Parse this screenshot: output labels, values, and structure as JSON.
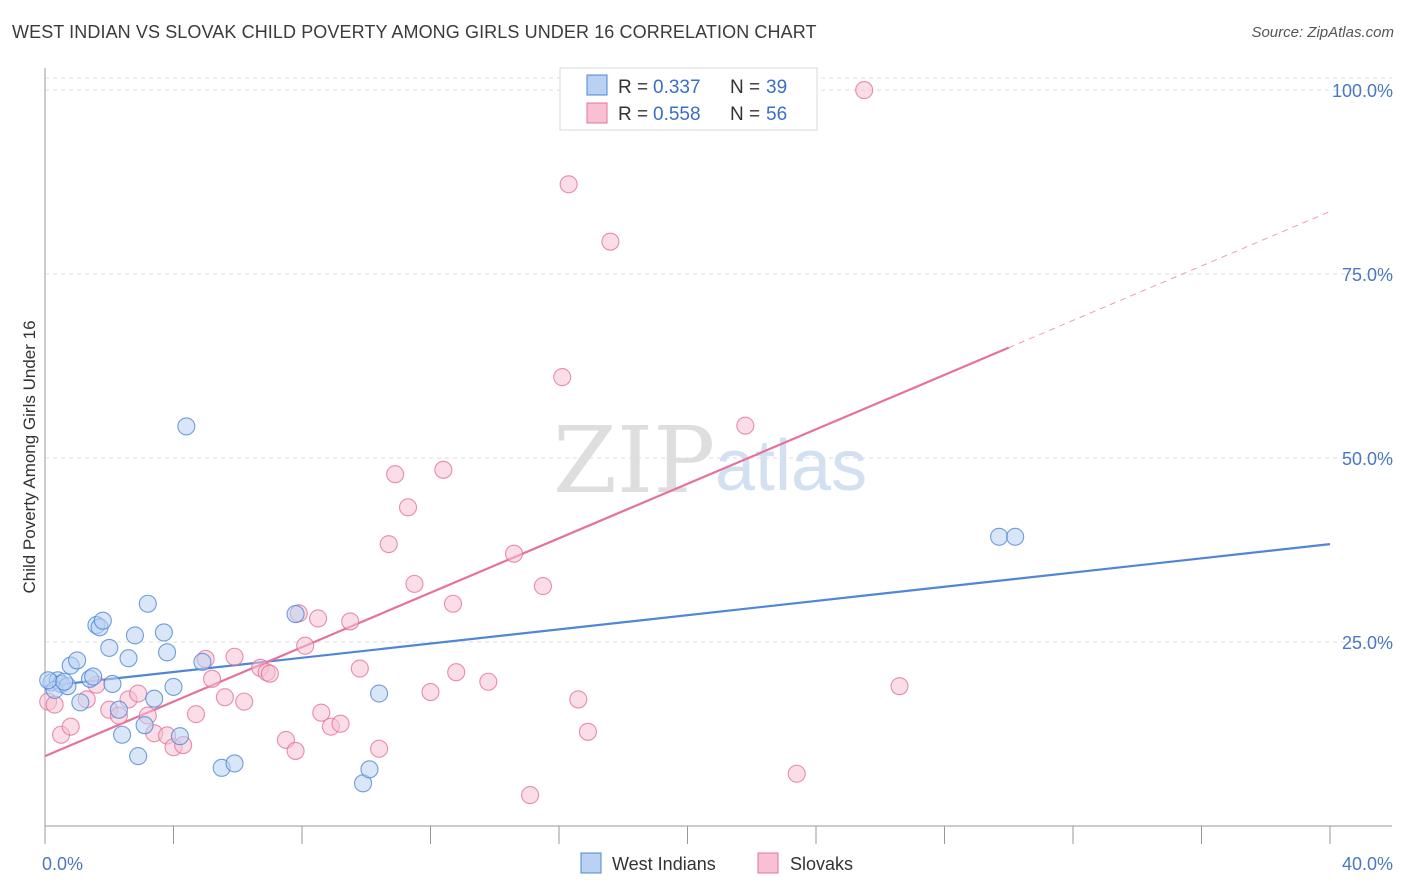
{
  "title": "WEST INDIAN VS SLOVAK CHILD POVERTY AMONG GIRLS UNDER 16 CORRELATION CHART",
  "source": "Source: ZipAtlas.com",
  "watermark": {
    "zip": "ZIP",
    "atlas": "atlas"
  },
  "colors": {
    "west_indians": "#4f86d6",
    "west_indians_fill": "#b9d1f2",
    "slovaks": "#e5729a",
    "slovaks_fill": "#f7c1d3",
    "tick_label": "#4a78c2"
  },
  "legend": {
    "entries": [
      {
        "r_label": "R =",
        "r_value": "0.337",
        "n_label": "N =",
        "n_value": "39"
      },
      {
        "r_label": "R =",
        "r_value": "0.558",
        "n_label": "N =",
        "n_value": "56"
      }
    ]
  },
  "chart_data": {
    "type": "scatter",
    "title": "WEST INDIAN VS SLOVAK CHILD POVERTY AMONG GIRLS UNDER 16 CORRELATION CHART",
    "xlabel": "",
    "ylabel": "Child Poverty Among Girls Under 16",
    "xlim": [
      0,
      40
    ],
    "ylim": [
      0,
      103
    ],
    "x_tick_labels": [
      {
        "value": 0,
        "label": "0.0%"
      },
      {
        "value": 40,
        "label": "40.0%"
      }
    ],
    "y_tick_labels": [
      {
        "value": 25,
        "label": "25.0%"
      },
      {
        "value": 50,
        "label": "50.0%"
      },
      {
        "value": 75,
        "label": "75.0%"
      },
      {
        "value": 100,
        "label": "100.0%"
      }
    ],
    "grid": true,
    "legend_position": "top-center",
    "series": [
      {
        "name": "West Indians",
        "r": 0.337,
        "n": 39,
        "trend": {
          "x0": 0,
          "y0": 19.0,
          "x1": 40,
          "y1": 38.3
        },
        "points": [
          [
            0.2,
            19.5
          ],
          [
            0.4,
            19.8
          ],
          [
            0.5,
            19.3
          ],
          [
            0.3,
            18.5
          ],
          [
            0.7,
            19.0
          ],
          [
            0.8,
            21.8
          ],
          [
            1.0,
            22.5
          ],
          [
            1.1,
            16.8
          ],
          [
            1.4,
            20.0
          ],
          [
            1.5,
            20.3
          ],
          [
            1.6,
            27.3
          ],
          [
            1.7,
            27.0
          ],
          [
            1.8,
            27.9
          ],
          [
            2.0,
            24.2
          ],
          [
            2.1,
            19.3
          ],
          [
            2.3,
            15.8
          ],
          [
            2.4,
            12.4
          ],
          [
            2.6,
            22.8
          ],
          [
            2.8,
            25.9
          ],
          [
            2.9,
            9.5
          ],
          [
            3.1,
            13.7
          ],
          [
            3.2,
            30.2
          ],
          [
            3.4,
            17.3
          ],
          [
            3.7,
            26.3
          ],
          [
            3.8,
            23.6
          ],
          [
            4.0,
            18.9
          ],
          [
            4.2,
            12.2
          ],
          [
            4.4,
            54.3
          ],
          [
            4.9,
            22.3
          ],
          [
            5.5,
            7.9
          ],
          [
            5.9,
            8.5
          ],
          [
            7.8,
            28.8
          ],
          [
            9.9,
            5.8
          ],
          [
            10.1,
            7.7
          ],
          [
            10.4,
            18.0
          ],
          [
            29.7,
            39.3
          ],
          [
            30.2,
            39.3
          ],
          [
            0.1,
            19.8
          ],
          [
            0.6,
            19.6
          ]
        ]
      },
      {
        "name": "Slovaks",
        "r": 0.558,
        "n": 56,
        "trend": {
          "x0": 0,
          "y0": 9.5,
          "x1": 30.0,
          "y1": 65.0,
          "dash_to_x": 40,
          "dash_to_y": 83.5
        },
        "points": [
          [
            0.1,
            16.9
          ],
          [
            0.3,
            16.5
          ],
          [
            0.5,
            12.4
          ],
          [
            0.8,
            13.5
          ],
          [
            1.3,
            17.2
          ],
          [
            1.6,
            19.2
          ],
          [
            2.0,
            15.8
          ],
          [
            2.3,
            15.0
          ],
          [
            2.6,
            17.2
          ],
          [
            2.9,
            18.0
          ],
          [
            3.2,
            15.0
          ],
          [
            3.4,
            12.6
          ],
          [
            3.8,
            12.3
          ],
          [
            4.0,
            10.7
          ],
          [
            4.3,
            11.0
          ],
          [
            4.7,
            15.2
          ],
          [
            5.0,
            22.7
          ],
          [
            5.2,
            20.0
          ],
          [
            5.6,
            17.5
          ],
          [
            5.9,
            23.0
          ],
          [
            6.2,
            16.9
          ],
          [
            6.7,
            21.5
          ],
          [
            6.9,
            20.9
          ],
          [
            7.0,
            20.7
          ],
          [
            7.5,
            11.7
          ],
          [
            7.8,
            10.2
          ],
          [
            7.9,
            28.9
          ],
          [
            8.1,
            24.5
          ],
          [
            8.5,
            28.2
          ],
          [
            8.6,
            15.4
          ],
          [
            8.9,
            13.5
          ],
          [
            9.2,
            13.9
          ],
          [
            9.5,
            27.8
          ],
          [
            9.8,
            21.4
          ],
          [
            10.4,
            10.5
          ],
          [
            10.7,
            38.3
          ],
          [
            10.9,
            47.8
          ],
          [
            11.3,
            43.3
          ],
          [
            11.5,
            32.9
          ],
          [
            12.0,
            18.2
          ],
          [
            12.4,
            48.4
          ],
          [
            12.7,
            30.2
          ],
          [
            12.8,
            20.9
          ],
          [
            13.8,
            19.6
          ],
          [
            14.6,
            37.0
          ],
          [
            15.1,
            4.2
          ],
          [
            15.5,
            32.6
          ],
          [
            16.1,
            61.0
          ],
          [
            16.3,
            87.2
          ],
          [
            16.6,
            17.2
          ],
          [
            16.9,
            12.8
          ],
          [
            17.6,
            79.4
          ],
          [
            21.8,
            54.4
          ],
          [
            23.4,
            7.1
          ],
          [
            25.5,
            100.0
          ],
          [
            26.6,
            19.0
          ]
        ]
      }
    ]
  }
}
